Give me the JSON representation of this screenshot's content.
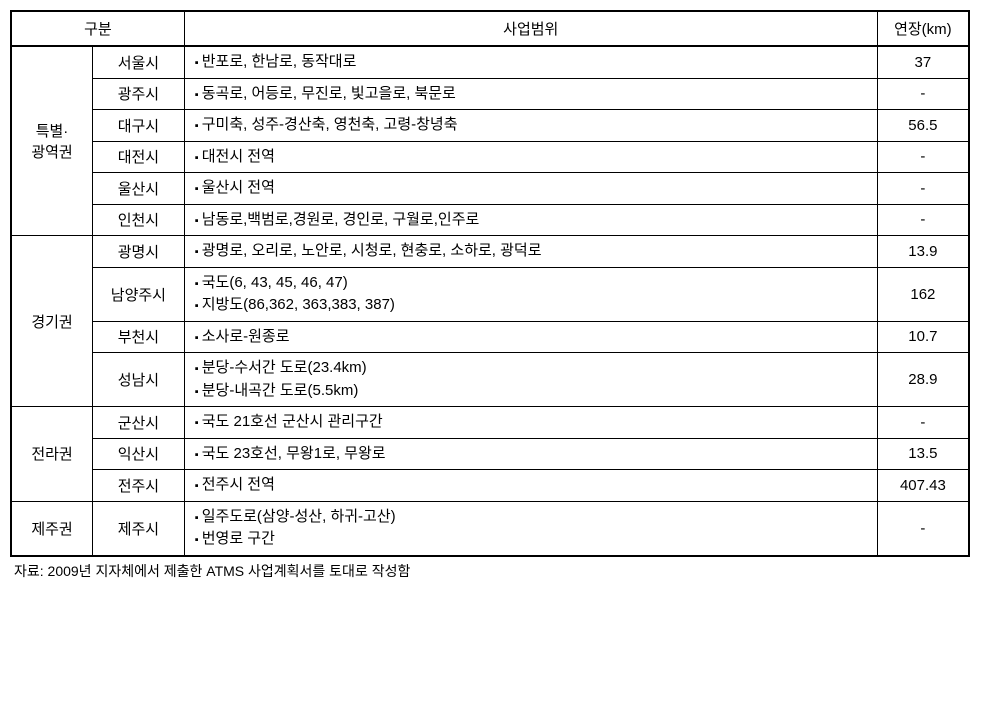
{
  "headers": {
    "gubun": "구분",
    "scope": "사업범위",
    "length": "연장(km)"
  },
  "regions": [
    {
      "name": "특별·\n광역권",
      "rows": [
        {
          "city": "서울시",
          "scope": [
            "반포로, 한남로, 동작대로"
          ],
          "length": "37"
        },
        {
          "city": "광주시",
          "scope": [
            "동곡로, 어등로, 무진로, 빛고을로, 북문로"
          ],
          "length": "-"
        },
        {
          "city": "대구시",
          "scope": [
            "구미축, 성주-경산축, 영천축, 고령-창녕축"
          ],
          "length": "56.5"
        },
        {
          "city": "대전시",
          "scope": [
            "대전시 전역"
          ],
          "length": "-"
        },
        {
          "city": "울산시",
          "scope": [
            "울산시 전역"
          ],
          "length": "-"
        },
        {
          "city": "인천시",
          "scope": [
            "남동로,백범로,경원로, 경인로, 구월로,인주로"
          ],
          "length": "-"
        }
      ]
    },
    {
      "name": "경기권",
      "rows": [
        {
          "city": "광명시",
          "scope": [
            "광명로, 오리로, 노안로, 시청로, 현충로, 소하로, 광덕로"
          ],
          "length": "13.9"
        },
        {
          "city": "남양주시",
          "scope": [
            "국도(6, 43, 45, 46, 47)",
            "지방도(86,362, 363,383, 387)"
          ],
          "length": "162"
        },
        {
          "city": "부천시",
          "scope": [
            "소사로-원종로"
          ],
          "length": "10.7"
        },
        {
          "city": "성남시",
          "scope": [
            "분당-수서간 도로(23.4km)",
            "분당-내곡간 도로(5.5km)"
          ],
          "length": "28.9"
        }
      ]
    },
    {
      "name": "전라권",
      "rows": [
        {
          "city": "군산시",
          "scope": [
            "국도 21호선 군산시 관리구간"
          ],
          "length": "-"
        },
        {
          "city": "익산시",
          "scope": [
            "국도 23호선, 무왕1로, 무왕로"
          ],
          "length": "13.5"
        },
        {
          "city": "전주시",
          "scope": [
            "전주시 전역"
          ],
          "length": "407.43"
        }
      ]
    },
    {
      "name": "제주권",
      "rows": [
        {
          "city": "제주시",
          "scope": [
            "일주도로(삼양-성산, 하귀-고산)",
            "번영로 구간"
          ],
          "length": "-"
        }
      ]
    }
  ],
  "footnote": "자료: 2009년 지자체에서 제출한 ATMS 사업계획서를 토대로 작성함"
}
